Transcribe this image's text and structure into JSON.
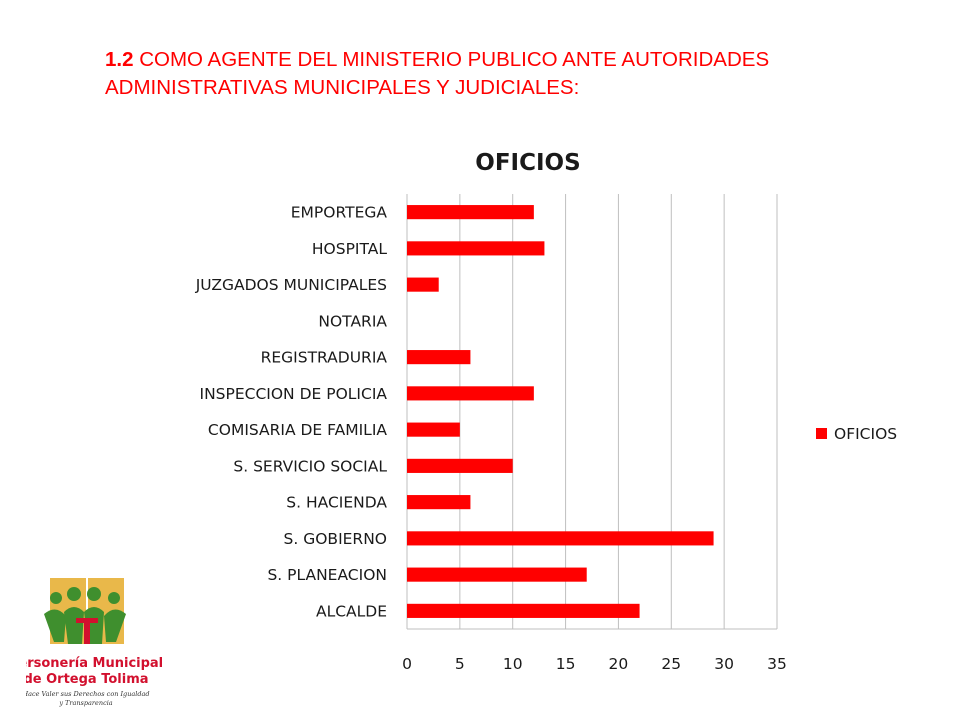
{
  "slide": {
    "heading_number": "1.2",
    "heading_text": " COMO AGENTE DEL MINISTERIO PUBLICO ANTE AUTORIDADES ADMINISTRATIVAS MUNICIPALES Y JUDICIALES:"
  },
  "logo": {
    "line1": "Personería Municipal",
    "line2": "de Ortega Tolima",
    "slogan1": "Hace Valer sus Derechos con Igualdad",
    "slogan2": "y Transparencia"
  },
  "colors": {
    "bar": "#ff0000",
    "grid": "#bfbfbf",
    "text": "#1a1a1a"
  },
  "chart_data": {
    "type": "bar",
    "orientation": "horizontal",
    "title": "OFICIOS",
    "categories": [
      "EMPORTEGA",
      "HOSPITAL",
      "JUZGADOS MUNICIPALES",
      "NOTARIA",
      "REGISTRADURIA",
      "INSPECCION DE POLICIA",
      "COMISARIA DE FAMILIA",
      "S. SERVICIO SOCIAL",
      "S. HACIENDA",
      "S. GOBIERNO",
      "S. PLANEACION",
      "ALCALDE"
    ],
    "series": [
      {
        "name": "OFICIOS",
        "values": [
          12,
          13,
          3,
          0,
          6,
          12,
          5,
          10,
          6,
          29,
          17,
          22
        ]
      }
    ],
    "xticks": [
      0,
      5,
      10,
      15,
      20,
      25,
      30,
      35
    ],
    "xlim": [
      0,
      35
    ],
    "grid": "vertical",
    "legend": "right"
  }
}
